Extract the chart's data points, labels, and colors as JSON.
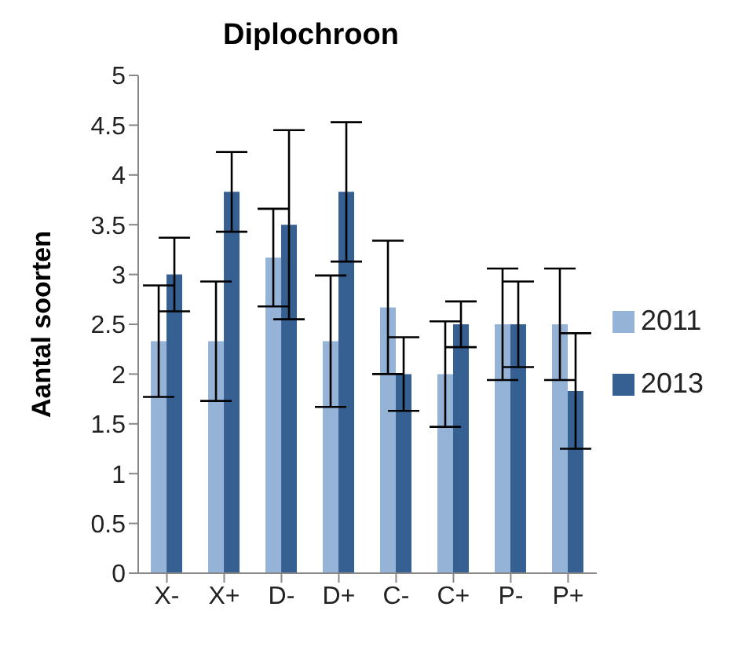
{
  "chart_data": {
    "type": "bar",
    "title": "Diplochroon",
    "ylabel": "Aantal soorten",
    "categories": [
      "X-",
      "X+",
      "D-",
      "D+",
      "C-",
      "C+",
      "P-",
      "P+"
    ],
    "series": [
      {
        "name": "2011",
        "color": "#95b3d7",
        "values": [
          2.33,
          2.33,
          3.17,
          2.33,
          2.67,
          2.0,
          2.5,
          2.5
        ],
        "errors": [
          0.56,
          0.6,
          0.49,
          0.66,
          0.67,
          0.53,
          0.56,
          0.56
        ]
      },
      {
        "name": "2013",
        "color": "#376092",
        "values": [
          3.0,
          3.83,
          3.5,
          3.83,
          2.0,
          2.5,
          2.5,
          1.83
        ],
        "errors": [
          0.37,
          0.4,
          0.95,
          0.7,
          0.37,
          0.23,
          0.43,
          0.58
        ]
      }
    ],
    "ylim": [
      0,
      5
    ],
    "yticks": [
      0,
      0.5,
      1,
      1.5,
      2,
      2.5,
      3,
      3.5,
      4,
      4.5,
      5
    ],
    "grid": false,
    "legend": "right"
  }
}
